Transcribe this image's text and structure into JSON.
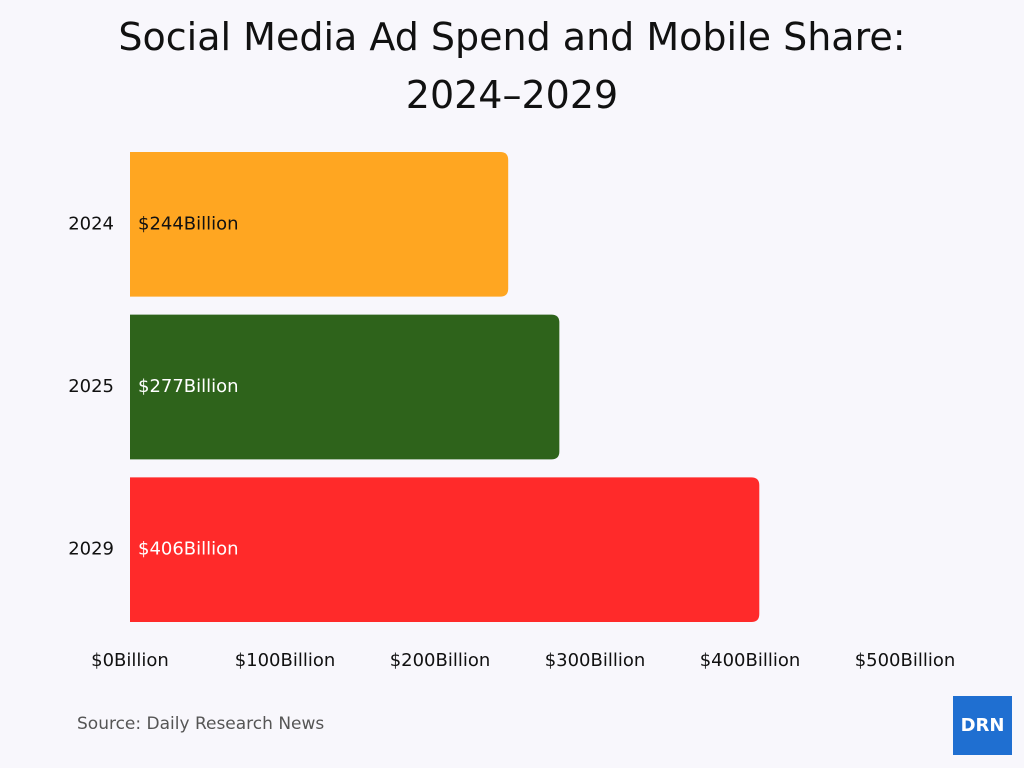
{
  "chart_data": {
    "type": "bar",
    "orientation": "horizontal",
    "title": "Social Media Ad Spend and Mobile Share: 2024–2029",
    "categories": [
      "2024",
      "2025",
      "2029"
    ],
    "values": [
      244,
      277,
      406
    ],
    "value_labels": [
      "$244Billion",
      "$277Billion",
      "$406Billion"
    ],
    "colors": [
      "#ffa621",
      "#2e631b",
      "#ff2a2a"
    ],
    "xlim": [
      0,
      500
    ],
    "xticks": [
      {
        "value": 0,
        "label": "$0Billion"
      },
      {
        "value": 100,
        "label": "$100Billion"
      },
      {
        "value": 200,
        "label": "$200Billion"
      },
      {
        "value": 300,
        "label": "$300Billion"
      },
      {
        "value": 400,
        "label": "$400Billion"
      },
      {
        "value": 500,
        "label": "$500Billion"
      }
    ],
    "grid": false
  },
  "footer": {
    "source": "Source: Daily Research News",
    "logo": "DRN"
  }
}
